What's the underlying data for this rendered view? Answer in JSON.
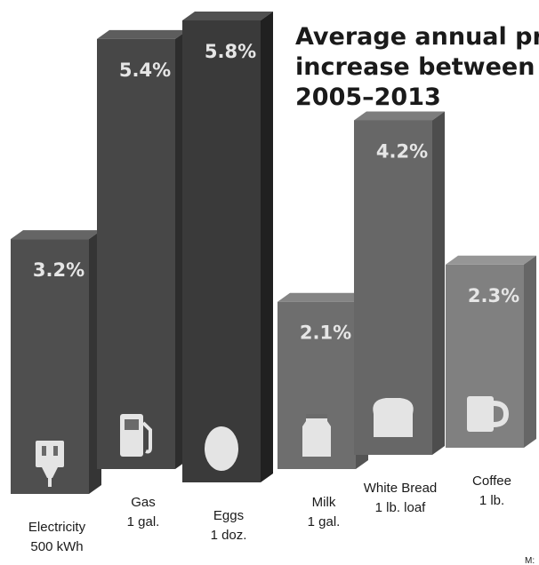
{
  "chart_data": {
    "type": "bar",
    "title_lines": [
      "Average annual price",
      "increase between",
      "2005–2013"
    ],
    "categories": [
      {
        "lines": [
          "Electricity",
          "500 kWh"
        ],
        "icon": "outlet-plug-icon"
      },
      {
        "lines": [
          "Gas",
          "1 gal."
        ],
        "icon": "gas-pump-icon"
      },
      {
        "lines": [
          "Eggs",
          "1 doz."
        ],
        "icon": "egg-icon"
      },
      {
        "lines": [
          "Milk",
          "1 gal."
        ],
        "icon": "milk-carton-icon"
      },
      {
        "lines": [
          "White Bread",
          "1 lb. loaf"
        ],
        "icon": "bread-loaf-icon"
      },
      {
        "lines": [
          "Coffee",
          "1 lb."
        ],
        "icon": "coffee-mug-icon"
      }
    ],
    "values": [
      3.2,
      5.4,
      5.8,
      2.1,
      4.2,
      2.3
    ],
    "value_labels": [
      "3.2%",
      "5.4%",
      "5.8%",
      "2.1%",
      "4.2%",
      "2.3%"
    ],
    "unit": "%",
    "ylim": [
      0,
      5.8
    ],
    "grid": false,
    "colors": [
      "#4f4f4f",
      "#474747",
      "#3a3a3a",
      "#6e6e6e",
      "#676767",
      "#808080"
    ],
    "footer_text": "M:"
  }
}
